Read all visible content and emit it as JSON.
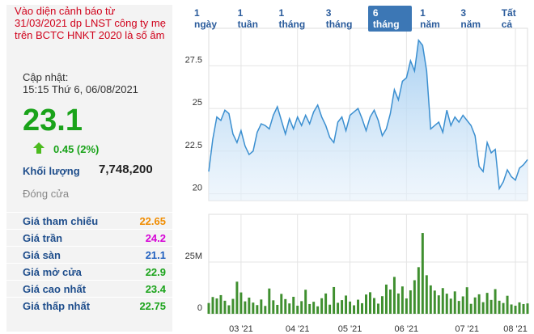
{
  "panel": {
    "warning": "Vào diện cảnh báo từ 31/03/2021 dp LNST công ty mẹ trên BCTC HNKT 2020 là số âm",
    "updated_label": "Cập nhật:",
    "updated_time": "15:15 Thứ 6, 06/08/2021",
    "price": "23.1",
    "change": "0.45 (2%)",
    "volume_label": "Khối lượng",
    "volume": "7,748,200",
    "status": "Đóng cửa",
    "rows": [
      {
        "label": "Giá tham chiếu",
        "value": "22.65",
        "color": "#f08c00"
      },
      {
        "label": "Giá trần",
        "value": "24.2",
        "color": "#d500d5"
      },
      {
        "label": "Giá sàn",
        "value": "21.1",
        "color": "#1f5fbf"
      },
      {
        "label": "Giá mở cửa",
        "value": "22.9",
        "color": "#1aa31a"
      },
      {
        "label": "Giá cao nhất",
        "value": "23.4",
        "color": "#1aa31a"
      },
      {
        "label": "Giá thấp nhất",
        "value": "22.75",
        "color": "#1aa31a"
      }
    ]
  },
  "ranges": [
    "1 ngày",
    "1 tuần",
    "1 tháng",
    "3 tháng",
    "6 tháng",
    "1 năm",
    "3 năm",
    "Tất cả"
  ],
  "active_range": 4,
  "chart_data": [
    {
      "type": "area",
      "color": "#3b8fd0",
      "grid": true,
      "ylim": [
        19.6,
        29.7
      ],
      "yticks": [
        20,
        22.5,
        25,
        27.5
      ],
      "values": [
        21.3,
        23.2,
        24.5,
        24.3,
        24.9,
        24.7,
        23.5,
        23.0,
        23.7,
        22.8,
        22.3,
        22.5,
        23.6,
        24.1,
        24.0,
        23.8,
        24.6,
        25.1,
        24.3,
        23.5,
        24.4,
        23.8,
        24.5,
        24.0,
        24.6,
        24.1,
        24.8,
        25.2,
        24.5,
        24.0,
        23.3,
        23.0,
        24.2,
        24.5,
        23.7,
        24.6,
        24.8,
        25.0,
        24.4,
        23.7,
        24.5,
        24.9,
        24.3,
        23.4,
        23.8,
        24.7,
        26.1,
        25.5,
        26.6,
        26.8,
        27.8,
        27.2,
        29.0,
        28.7,
        27.2,
        23.8,
        24.0,
        24.2,
        23.6,
        24.9,
        24.0,
        24.5,
        24.2,
        24.6,
        24.3,
        24.0,
        23.4,
        21.6,
        21.3,
        23.0,
        22.4,
        22.6,
        20.3,
        20.7,
        21.4,
        21.0,
        20.8,
        21.5,
        21.7,
        22.0
      ]
    },
    {
      "type": "bar",
      "color": "#3f8f2f",
      "grid": true,
      "ylim": [
        0,
        48000000
      ],
      "yticks": [
        0,
        {
          "value": 25000000,
          "label": "25M"
        }
      ],
      "categories": [
        null,
        null,
        null,
        null,
        null,
        null,
        null,
        null,
        "03 '21",
        null,
        null,
        null,
        null,
        null,
        null,
        null,
        null,
        null,
        null,
        null,
        null,
        null,
        "04 '21",
        null,
        null,
        null,
        null,
        null,
        null,
        null,
        null,
        null,
        null,
        null,
        null,
        "05 '21",
        null,
        null,
        null,
        null,
        null,
        null,
        null,
        null,
        null,
        null,
        null,
        null,
        null,
        "06 '21",
        null,
        null,
        null,
        null,
        null,
        null,
        null,
        null,
        null,
        null,
        null,
        null,
        null,
        null,
        "07 '21",
        null,
        null,
        null,
        null,
        null,
        null,
        null,
        null,
        null,
        null,
        null,
        "08 '21",
        null,
        null,
        null
      ],
      "values": [
        5200000,
        8100000,
        7400000,
        9000000,
        6300000,
        4100000,
        7200000,
        15500000,
        10300000,
        6000000,
        7800000,
        5400000,
        4200000,
        6900000,
        3800000,
        12200000,
        6500000,
        4300000,
        9600000,
        7100000,
        5000000,
        8200000,
        3900000,
        6100000,
        11600000,
        4700000,
        5800000,
        3600000,
        7500000,
        9800000,
        4400000,
        12900000,
        5300000,
        6600000,
        8800000,
        5900000,
        4100000,
        6800000,
        5100000,
        9300000,
        10400000,
        7600000,
        4900000,
        8500000,
        14100000,
        11700000,
        17800000,
        9800000,
        13200000,
        7400000,
        11300000,
        16200000,
        22500000,
        39000000,
        18600000,
        13700000,
        11200000,
        8900000,
        12400000,
        9700000,
        7300000,
        10800000,
        6200000,
        8400000,
        12800000,
        4800000,
        7900000,
        9400000,
        5600000,
        10100000,
        6700000,
        11900000,
        6300000,
        5200000,
        8700000,
        4500000,
        3900000,
        5500000,
        4700000,
        5000000
      ]
    }
  ]
}
